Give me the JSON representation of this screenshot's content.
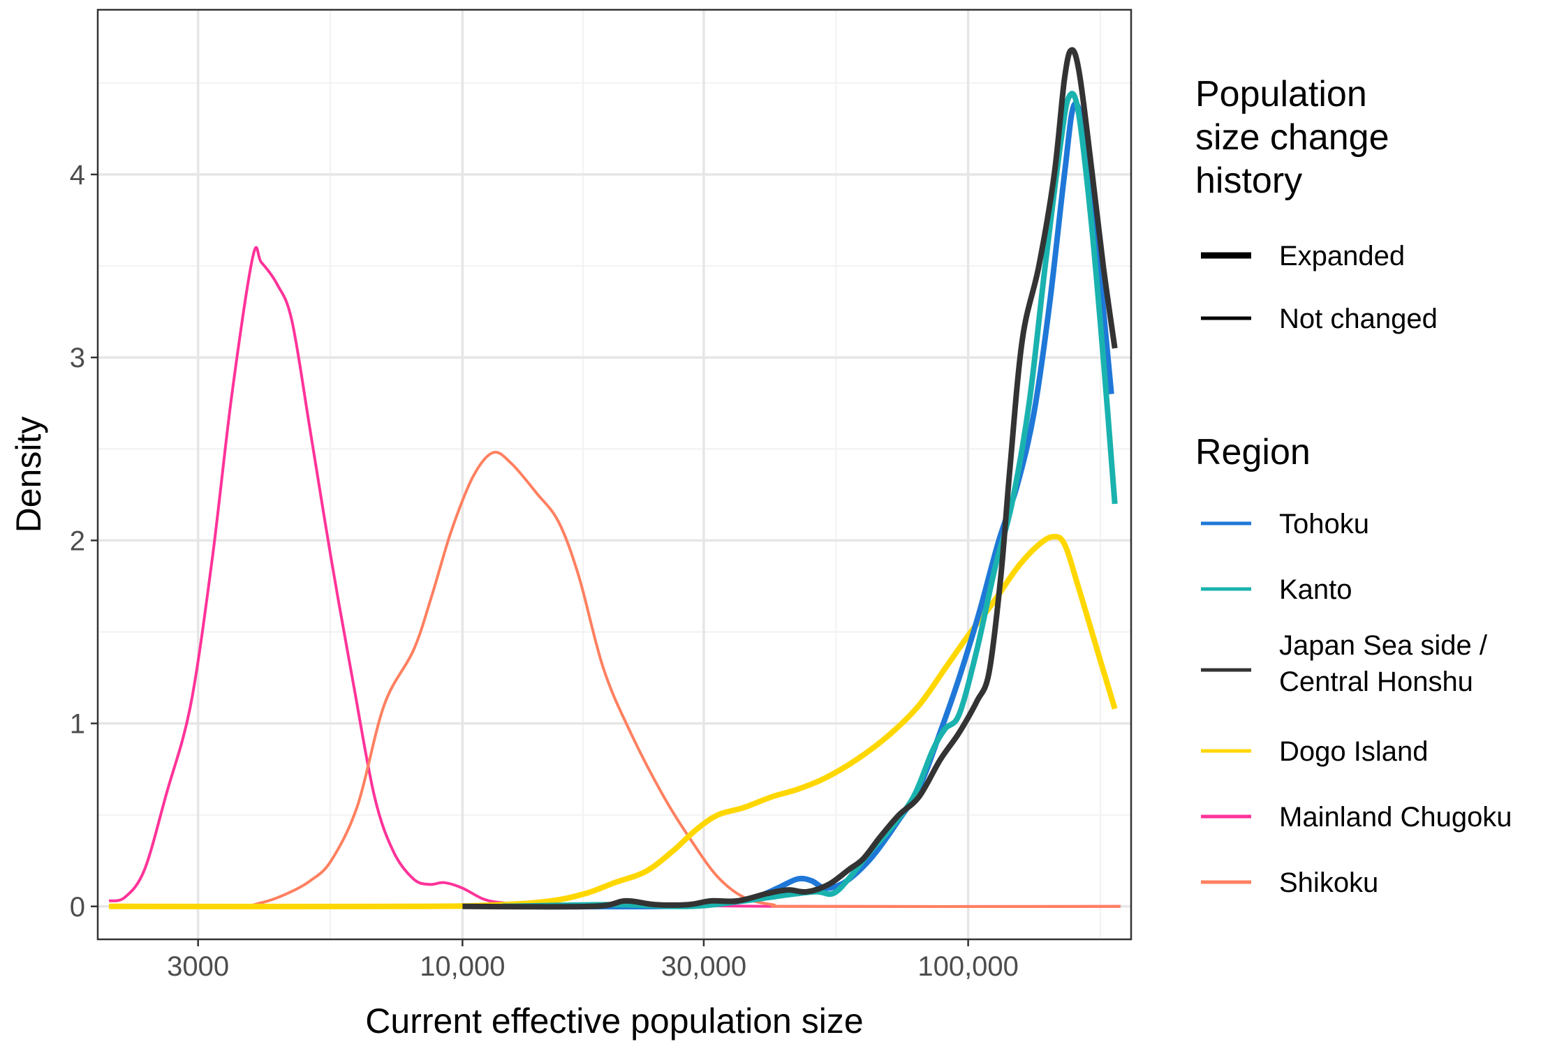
{
  "chart_data": {
    "type": "line",
    "subtype": "density",
    "xlabel": "Current effective population size",
    "ylabel": "Density",
    "x_scale": "log10",
    "xlim": [
      1900,
      210000
    ],
    "ylim": [
      -0.18,
      4.9
    ],
    "x_ticks": [
      {
        "value": 3000,
        "label": "3000"
      },
      {
        "value": 10000,
        "label": "10,000"
      },
      {
        "value": 30000,
        "label": "30,000"
      },
      {
        "value": 100000,
        "label": "100,000"
      }
    ],
    "y_ticks": [
      {
        "value": 0,
        "label": "0"
      },
      {
        "value": 1,
        "label": "1"
      },
      {
        "value": 2,
        "label": "2"
      },
      {
        "value": 3,
        "label": "3"
      },
      {
        "value": 4,
        "label": "4"
      }
    ],
    "grid": true,
    "legend_position": "right",
    "legend_history": {
      "title_lines": [
        "Population",
        "size change",
        "history"
      ],
      "items": [
        {
          "label": "Expanded",
          "style": "thick"
        },
        {
          "label": "Not changed",
          "style": "thin"
        }
      ]
    },
    "legend_region": {
      "title": "Region",
      "items": [
        {
          "label_lines": [
            "Tohoku"
          ],
          "color": "#1f78d8"
        },
        {
          "label_lines": [
            "Kanto"
          ],
          "color": "#1ab2ae"
        },
        {
          "label_lines": [
            "Japan Sea side /",
            "Central Honshu"
          ],
          "color": "#333333"
        },
        {
          "label_lines": [
            "Dogo Island"
          ],
          "color": "#ffd700"
        },
        {
          "label_lines": [
            "Mainland Chugoku"
          ],
          "color": "#ff3399"
        },
        {
          "label_lines": [
            "Shikoku"
          ],
          "color": "#ff8060"
        }
      ]
    },
    "series": [
      {
        "name": "Mainland Chugoku",
        "history": "Not changed",
        "color": "#ff3399",
        "points": [
          [
            2000,
            0.03
          ],
          [
            2150,
            0.05
          ],
          [
            2350,
            0.2
          ],
          [
            2600,
            0.62
          ],
          [
            2900,
            1.1
          ],
          [
            3200,
            1.9
          ],
          [
            3500,
            2.8
          ],
          [
            3850,
            3.55
          ],
          [
            4000,
            3.52
          ],
          [
            4300,
            3.4
          ],
          [
            4600,
            3.2
          ],
          [
            5000,
            2.6
          ],
          [
            5500,
            1.9
          ],
          [
            6100,
            1.2
          ],
          [
            6700,
            0.6
          ],
          [
            7300,
            0.3
          ],
          [
            8000,
            0.15
          ],
          [
            8600,
            0.12
          ],
          [
            9200,
            0.13
          ],
          [
            10000,
            0.1
          ],
          [
            11000,
            0.04
          ],
          [
            12000,
            0.02
          ],
          [
            14000,
            0.01
          ],
          [
            20000,
            0.01
          ],
          [
            45000,
            0.0
          ],
          [
            200000,
            0.0
          ]
        ]
      },
      {
        "name": "Shikoku",
        "history": "Not changed",
        "color": "#ff8060",
        "points": [
          [
            2000,
            0.0
          ],
          [
            3500,
            0.0
          ],
          [
            4000,
            0.02
          ],
          [
            4500,
            0.07
          ],
          [
            5000,
            0.14
          ],
          [
            5500,
            0.25
          ],
          [
            6200,
            0.55
          ],
          [
            7000,
            1.1
          ],
          [
            8000,
            1.4
          ],
          [
            8700,
            1.7
          ],
          [
            9500,
            2.05
          ],
          [
            10500,
            2.35
          ],
          [
            11500,
            2.48
          ],
          [
            12500,
            2.42
          ],
          [
            14000,
            2.26
          ],
          [
            15500,
            2.1
          ],
          [
            17000,
            1.8
          ],
          [
            19000,
            1.3
          ],
          [
            21500,
            0.95
          ],
          [
            25000,
            0.6
          ],
          [
            28500,
            0.35
          ],
          [
            32000,
            0.16
          ],
          [
            36000,
            0.05
          ],
          [
            41000,
            0.01
          ],
          [
            48000,
            0.0
          ],
          [
            200000,
            0.0
          ]
        ]
      },
      {
        "name": "Dogo Island",
        "history": "Expanded",
        "color": "#ffd700",
        "points": [
          [
            2000,
            0.0
          ],
          [
            8000,
            0.0
          ],
          [
            12000,
            0.01
          ],
          [
            15000,
            0.03
          ],
          [
            17500,
            0.07
          ],
          [
            20000,
            0.13
          ],
          [
            23000,
            0.19
          ],
          [
            26000,
            0.3
          ],
          [
            29000,
            0.42
          ],
          [
            32000,
            0.5
          ],
          [
            36000,
            0.54
          ],
          [
            41000,
            0.6
          ],
          [
            46000,
            0.64
          ],
          [
            52000,
            0.7
          ],
          [
            60000,
            0.8
          ],
          [
            70000,
            0.94
          ],
          [
            80000,
            1.1
          ],
          [
            90000,
            1.3
          ],
          [
            100000,
            1.48
          ],
          [
            112000,
            1.66
          ],
          [
            125000,
            1.85
          ],
          [
            137000,
            1.97
          ],
          [
            147000,
            2.02
          ],
          [
            155000,
            1.98
          ],
          [
            165000,
            1.75
          ],
          [
            180000,
            1.4
          ],
          [
            195000,
            1.08
          ]
        ]
      },
      {
        "name": "Tohoku",
        "history": "Expanded",
        "color": "#1f78d8",
        "points": [
          [
            12000,
            0.0
          ],
          [
            25000,
            0.0
          ],
          [
            33000,
            0.02
          ],
          [
            38000,
            0.05
          ],
          [
            42000,
            0.1
          ],
          [
            46000,
            0.15
          ],
          [
            49000,
            0.14
          ],
          [
            52000,
            0.1
          ],
          [
            56000,
            0.12
          ],
          [
            60000,
            0.18
          ],
          [
            65000,
            0.28
          ],
          [
            72000,
            0.45
          ],
          [
            80000,
            0.65
          ],
          [
            88000,
            0.95
          ],
          [
            96000,
            1.25
          ],
          [
            105000,
            1.6
          ],
          [
            115000,
            2.0
          ],
          [
            125000,
            2.3
          ],
          [
            135000,
            2.7
          ],
          [
            145000,
            3.3
          ],
          [
            155000,
            4.0
          ],
          [
            162000,
            4.38
          ],
          [
            170000,
            4.2
          ],
          [
            180000,
            3.6
          ],
          [
            192000,
            2.8
          ]
        ]
      },
      {
        "name": "Kanto",
        "history": "Expanded",
        "color": "#1ab2ae",
        "points": [
          [
            12000,
            0.0
          ],
          [
            20000,
            0.01
          ],
          [
            28000,
            0.0
          ],
          [
            36000,
            0.03
          ],
          [
            43000,
            0.06
          ],
          [
            50000,
            0.08
          ],
          [
            54000,
            0.07
          ],
          [
            58000,
            0.15
          ],
          [
            64000,
            0.3
          ],
          [
            70000,
            0.42
          ],
          [
            78000,
            0.6
          ],
          [
            85000,
            0.85
          ],
          [
            90000,
            0.97
          ],
          [
            96000,
            1.05
          ],
          [
            104000,
            1.4
          ],
          [
            113000,
            1.85
          ],
          [
            122000,
            2.2
          ],
          [
            132000,
            2.75
          ],
          [
            142000,
            3.5
          ],
          [
            152000,
            4.15
          ],
          [
            158000,
            4.42
          ],
          [
            165000,
            4.35
          ],
          [
            175000,
            3.75
          ],
          [
            185000,
            3.0
          ],
          [
            195000,
            2.2
          ]
        ]
      },
      {
        "name": "Japan Sea side / Central Honshu",
        "history": "Expanded",
        "color": "#333333",
        "points": [
          [
            10000,
            0.0
          ],
          [
            18000,
            0.0
          ],
          [
            21000,
            0.03
          ],
          [
            24000,
            0.01
          ],
          [
            28000,
            0.01
          ],
          [
            31000,
            0.03
          ],
          [
            35000,
            0.03
          ],
          [
            40000,
            0.07
          ],
          [
            44000,
            0.09
          ],
          [
            48000,
            0.08
          ],
          [
            53000,
            0.12
          ],
          [
            58000,
            0.2
          ],
          [
            62000,
            0.26
          ],
          [
            67000,
            0.38
          ],
          [
            73000,
            0.5
          ],
          [
            80000,
            0.6
          ],
          [
            88000,
            0.8
          ],
          [
            96000,
            0.95
          ],
          [
            104000,
            1.12
          ],
          [
            110000,
            1.28
          ],
          [
            116000,
            1.8
          ],
          [
            121000,
            2.4
          ],
          [
            128000,
            3.1
          ],
          [
            138000,
            3.5
          ],
          [
            148000,
            4.0
          ],
          [
            155000,
            4.52
          ],
          [
            160000,
            4.68
          ],
          [
            166000,
            4.55
          ],
          [
            176000,
            4.0
          ],
          [
            185000,
            3.5
          ],
          [
            195000,
            3.05
          ]
        ]
      }
    ]
  }
}
